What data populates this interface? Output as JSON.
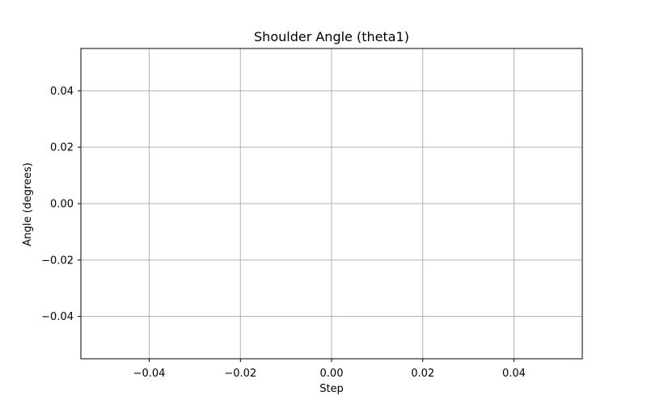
{
  "chart_data": {
    "type": "line",
    "title": "Shoulder Angle (theta1)",
    "xlabel": "Step",
    "ylabel": "Angle (degrees)",
    "xlim": [
      -0.055,
      0.055
    ],
    "ylim": [
      -0.055,
      0.055
    ],
    "xticks": [
      -0.04,
      -0.02,
      0.0,
      0.02,
      0.04
    ],
    "yticks": [
      -0.04,
      -0.02,
      0.0,
      0.02,
      0.04
    ],
    "xtick_labels": [
      "−0.04",
      "−0.02",
      "0.00",
      "0.02",
      "0.04"
    ],
    "ytick_labels": [
      "−0.04",
      "−0.02",
      "0.00",
      "0.02",
      "0.04"
    ],
    "grid": true,
    "series": [
      {
        "x": [],
        "y": []
      }
    ]
  },
  "colors": {
    "grid": "#b0b0b0",
    "axes": "#000000",
    "background": "#ffffff"
  }
}
